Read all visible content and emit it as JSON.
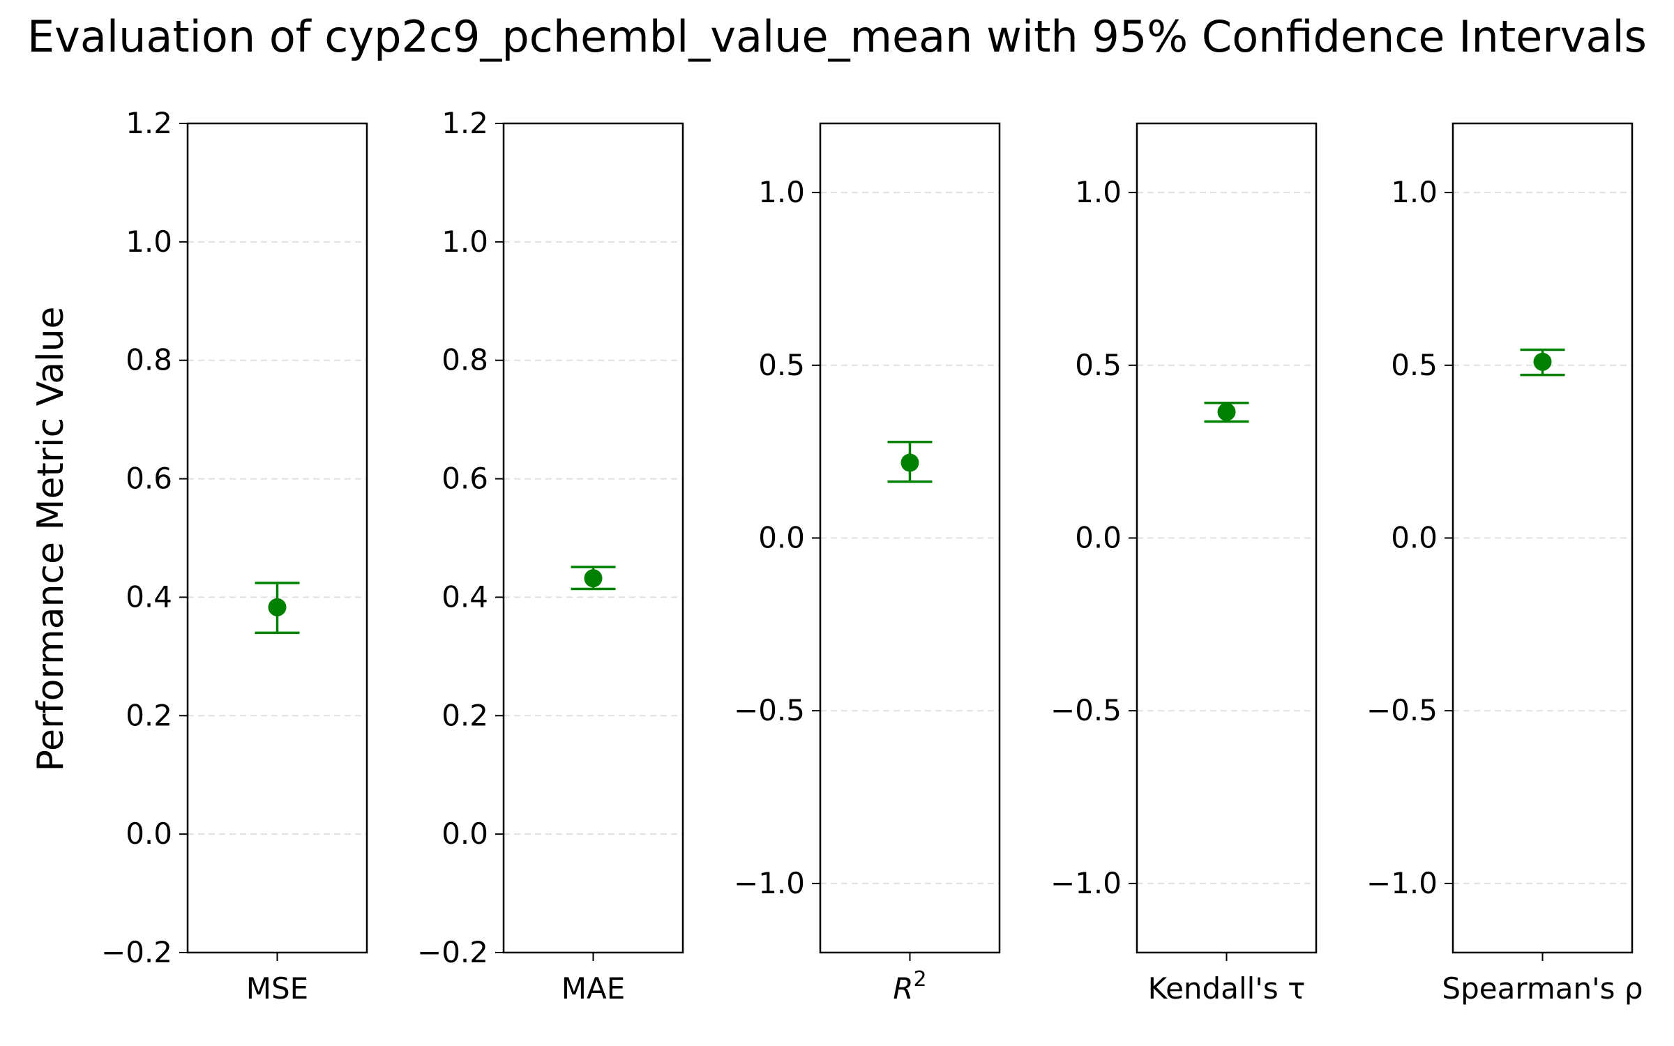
{
  "figure": {
    "title": "Evaluation of cyp2c9_pchembl_value_mean with 95% Confidence Intervals",
    "ylabel": "Performance Metric Value"
  },
  "chart_data": [
    {
      "type": "scatter",
      "xtick": "MSE",
      "value": 0.383,
      "ci": [
        0.34,
        0.424
      ],
      "ylim": [
        -0.2,
        1.2
      ],
      "yticks": [
        -0.2,
        0.0,
        0.2,
        0.4,
        0.6,
        0.8,
        1.0,
        1.2
      ],
      "ytick_labels": [
        "−0.2",
        "0.0",
        "0.2",
        "0.4",
        "0.6",
        "0.8",
        "1.0",
        "1.2"
      ],
      "grid": "y, dashed",
      "color": "#008000"
    },
    {
      "type": "scatter",
      "xtick": "MAE",
      "value": 0.432,
      "ci": [
        0.414,
        0.451
      ],
      "ylim": [
        -0.2,
        1.2
      ],
      "yticks": [
        -0.2,
        0.0,
        0.2,
        0.4,
        0.6,
        0.8,
        1.0,
        1.2
      ],
      "ytick_labels": [
        "−0.2",
        "0.0",
        "0.2",
        "0.4",
        "0.6",
        "0.8",
        "1.0",
        "1.2"
      ],
      "grid": "y, dashed",
      "color": "#008000"
    },
    {
      "type": "scatter",
      "xtick": "R",
      "xtick_sup": "2",
      "value": 0.218,
      "ci": [
        0.163,
        0.278
      ],
      "ylim": [
        -1.2,
        1.2
      ],
      "yticks": [
        -1.0,
        -0.5,
        0.0,
        0.5,
        1.0
      ],
      "ytick_labels": [
        "−1.0",
        "−0.5",
        "0.0",
        "0.5",
        "1.0"
      ],
      "grid": "y, dashed",
      "color": "#008000"
    },
    {
      "type": "scatter",
      "xtick": "Kendall's τ",
      "value": 0.365,
      "ci": [
        0.337,
        0.391
      ],
      "ylim": [
        -1.2,
        1.2
      ],
      "yticks": [
        -1.0,
        -0.5,
        0.0,
        0.5,
        1.0
      ],
      "ytick_labels": [
        "−1.0",
        "−0.5",
        "0.0",
        "0.5",
        "1.0"
      ],
      "grid": "y, dashed",
      "color": "#008000"
    },
    {
      "type": "scatter",
      "xtick": "Spearman's ρ",
      "value": 0.51,
      "ci": [
        0.472,
        0.545
      ],
      "ylim": [
        -1.2,
        1.2
      ],
      "yticks": [
        -1.0,
        -0.5,
        0.0,
        0.5,
        1.0
      ],
      "ytick_labels": [
        "−1.0",
        "−0.5",
        "0.0",
        "0.5",
        "1.0"
      ],
      "grid": "y, dashed",
      "color": "#008000"
    }
  ]
}
